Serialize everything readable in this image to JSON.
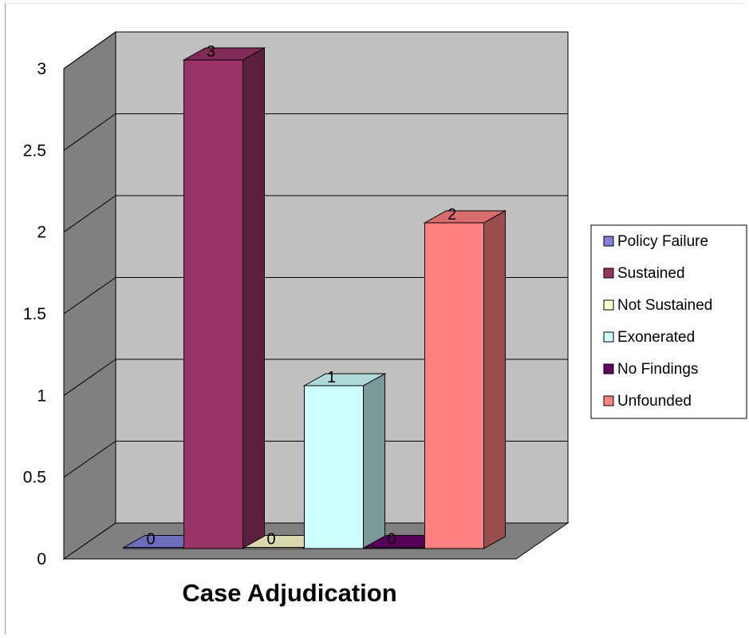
{
  "chart_data": {
    "type": "bar",
    "style": "3d",
    "title": "",
    "xlabel": "Case Adjudication",
    "ylabel": "",
    "categories": [
      "Policy Failure",
      "Sustained",
      "Not Sustained",
      "Exonerated",
      "No Findings",
      "Unfounded"
    ],
    "values": [
      0,
      3,
      0,
      1,
      0,
      2
    ],
    "data_labels": [
      "0",
      "3",
      "0",
      "1",
      "0",
      "2"
    ],
    "ylim": [
      0,
      3
    ],
    "yticks": [
      "0",
      "0.5",
      "1",
      "1.5",
      "2",
      "2.5",
      "3"
    ],
    "grid": true,
    "legend_position": "right",
    "colors": [
      "#8080e0",
      "#993366",
      "#ffffcc",
      "#ccffff",
      "#660066",
      "#ff8080"
    ]
  }
}
